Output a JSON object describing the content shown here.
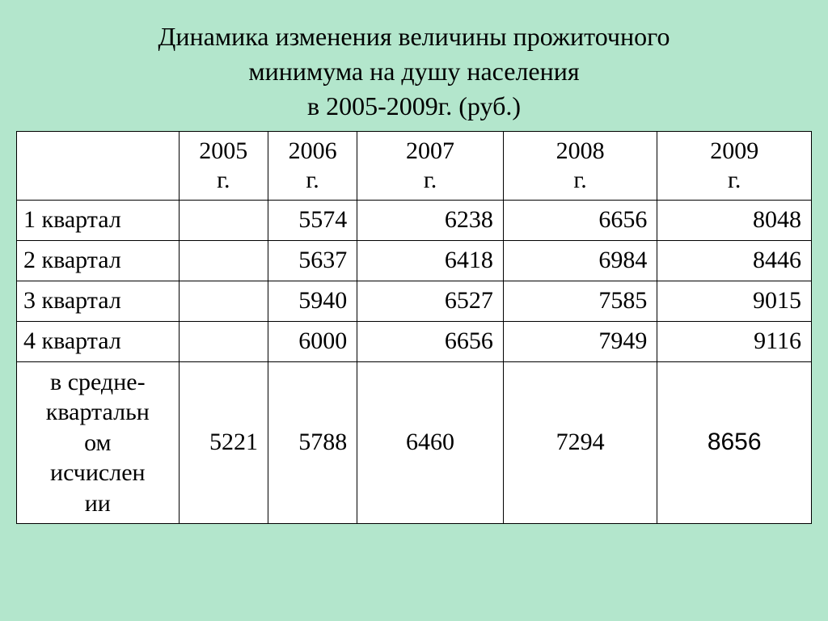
{
  "title": {
    "line1": "Динамика изменения величины прожиточного",
    "line2": "минимума на душу населения",
    "line3": "в 2005-2009г. (руб.)"
  },
  "table": {
    "columns": [
      {
        "year": "2005",
        "suffix": "г."
      },
      {
        "year": "2006",
        "suffix": "г."
      },
      {
        "year": "2007",
        "suffix": "г."
      },
      {
        "year": "2008",
        "suffix": "г."
      },
      {
        "year": "2009",
        "suffix": "г."
      }
    ],
    "rows": [
      {
        "label": "1 квартал",
        "cells": [
          "",
          "5574",
          "6238",
          "6656",
          "8048"
        ]
      },
      {
        "label": "2 квартал",
        "cells": [
          "",
          "5637",
          "6418",
          "6984",
          "8446"
        ]
      },
      {
        "label": "3 квартал",
        "cells": [
          "",
          "5940",
          "6527",
          "7585",
          "9015"
        ]
      },
      {
        "label": "4 квартал",
        "cells": [
          "",
          "6000",
          "6656",
          "7949",
          "9116"
        ]
      }
    ],
    "avgRow": {
      "label_l1": "в средне-",
      "label_l2": "квартальн",
      "label_l3": "ом",
      "label_l4": "исчислен",
      "label_l5": "ии",
      "cells": [
        "5221",
        "5788",
        "6460",
        "7294",
        "8656"
      ]
    }
  },
  "style": {
    "background_color": "#b3e6cc",
    "table_bg": "#ffffff",
    "border_color": "#000000",
    "title_fontsize": 32,
    "cell_fontsize": 30,
    "font_family_body": "Times New Roman",
    "font_family_last_cell": "Arial"
  }
}
